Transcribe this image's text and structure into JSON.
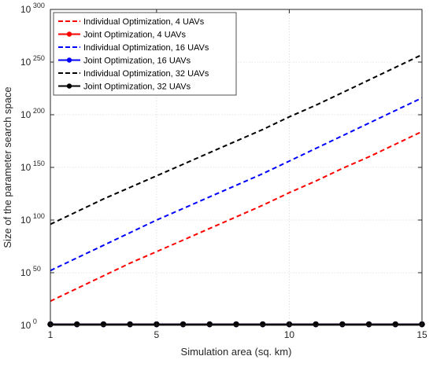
{
  "chart_data": {
    "type": "line",
    "xlabel": "Simulation area (sq. km)",
    "ylabel": "Size of the parameter search space",
    "x_ticks": [
      "1",
      "5",
      "10",
      "15"
    ],
    "x_tick_values": [
      1,
      5,
      10,
      15
    ],
    "y_tick_exponents": [
      "0",
      "50",
      "100",
      "150",
      "200",
      "250",
      "300"
    ],
    "y_tick_base": "10",
    "y_scale": "log10",
    "xlim": [
      1,
      15
    ],
    "ylim_log10": [
      0,
      300
    ],
    "grid": true,
    "legend_position": "top-left",
    "x": [
      1,
      2,
      3,
      4,
      5,
      6,
      7,
      8,
      9,
      10,
      11,
      12,
      13,
      14,
      15
    ],
    "series": [
      {
        "name": "Individual Optimization, 4 UAVs",
        "color": "#ff0000",
        "style": "dashed",
        "marker": "none",
        "log10_values": [
          23,
          35,
          47,
          59,
          70,
          81,
          92,
          103,
          114,
          126,
          137,
          149,
          160,
          172,
          184
        ]
      },
      {
        "name": "Joint Optimization, 4 UAVs",
        "color": "#ff0000",
        "style": "solid",
        "marker": "circle",
        "log10_values": [
          1,
          1,
          1,
          1,
          1,
          1,
          1,
          1,
          1,
          1,
          1,
          1,
          1,
          1,
          1
        ]
      },
      {
        "name": "Individual Optimization, 16 UAVs",
        "color": "#0000ff",
        "style": "dashed",
        "marker": "none",
        "log10_values": [
          52,
          64,
          76,
          88,
          100,
          111,
          122,
          133,
          144,
          156,
          168,
          180,
          192,
          204,
          216
        ]
      },
      {
        "name": "Joint Optimization, 16 UAVs",
        "color": "#0000ff",
        "style": "solid",
        "marker": "circle",
        "log10_values": [
          1,
          1,
          1,
          1,
          1,
          1,
          1,
          1,
          1,
          1,
          1,
          1,
          1,
          1,
          1
        ]
      },
      {
        "name": "Individual Optimization, 32 UAVs",
        "color": "#000000",
        "style": "dashed",
        "marker": "none",
        "log10_values": [
          96,
          108,
          120,
          131,
          142,
          153,
          164,
          175,
          186,
          198,
          209,
          221,
          233,
          245,
          257
        ]
      },
      {
        "name": "Joint Optimization, 32 UAVs",
        "color": "#000000",
        "style": "solid",
        "marker": "circle",
        "log10_values": [
          1,
          1,
          1,
          1,
          1,
          1,
          1,
          1,
          1,
          1,
          1,
          1,
          1,
          1,
          1
        ]
      }
    ]
  }
}
